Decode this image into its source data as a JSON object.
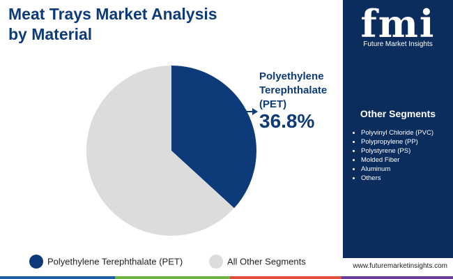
{
  "chart_data": {
    "type": "pie",
    "title": "Meat Trays Market Analysis by Material",
    "categories": [
      "Polyethylene Terephthalate (PET)",
      "All Other Segments"
    ],
    "values": [
      36.8,
      63.2
    ],
    "value_labels": [
      "36.8%",
      null
    ],
    "colors": [
      "#0d3b7a",
      "#dcdcdc"
    ],
    "legend": "bottom"
  },
  "sidebar": {
    "logo": "fmi",
    "brand": "Future Market Insights",
    "segments_title": "Other Segments",
    "segments": [
      "Polyvinyl Chloride (PVC)",
      "Polypropylene (PP)",
      "Polystyrene (PS)",
      "Molded Fiber",
      "Aluminum",
      "Others"
    ],
    "url": "www.futuremarketinsights.com"
  }
}
